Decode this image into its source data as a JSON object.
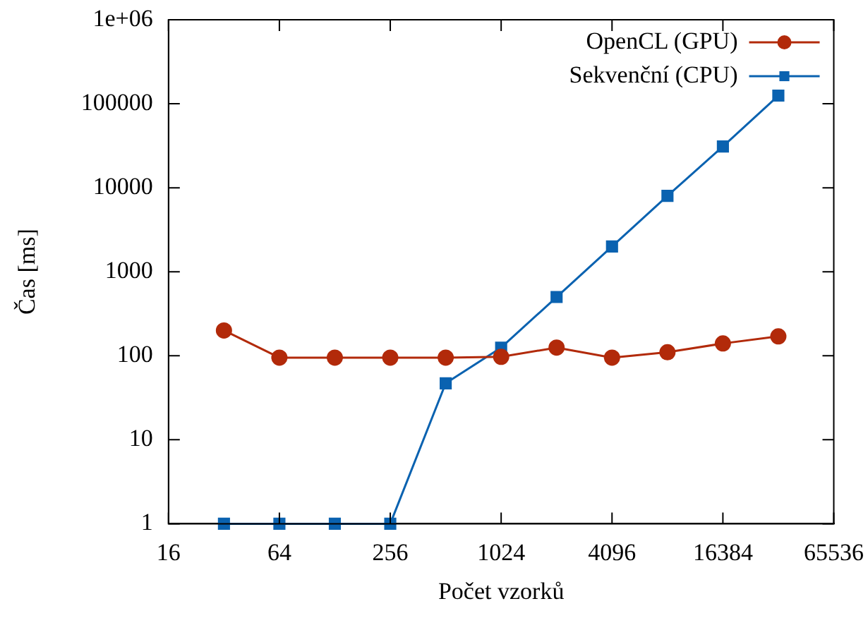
{
  "chart_data": {
    "type": "line",
    "xlabel": "Počet vzorků",
    "ylabel": "Čas [ms]",
    "x": [
      32,
      64,
      128,
      256,
      512,
      1024,
      2048,
      4096,
      8192,
      16384,
      32768
    ],
    "series": [
      {
        "name": "OpenCL (GPU)",
        "color": "#b22a0a",
        "marker": "circle",
        "values": [
          200,
          95,
          95,
          95,
          95,
          97,
          125,
          95,
          110,
          140,
          170
        ]
      },
      {
        "name": "Sekvenční (CPU)",
        "color": "#0a62b0",
        "marker": "square",
        "values": [
          1,
          1,
          1,
          1,
          47,
          125,
          500,
          2000,
          8000,
          31000,
          125000
        ]
      }
    ],
    "log": "xy",
    "xlim": [
      16,
      65536
    ],
    "xticks": [
      16,
      64,
      256,
      1024,
      4096,
      16384,
      65536
    ],
    "ylim": [
      1,
      1000000
    ],
    "yticks": [
      1,
      10,
      100,
      1000,
      10000,
      100000,
      {
        "value": 1000000,
        "label": "1e+06"
      }
    ],
    "legend": "top right",
    "line_style": "solid"
  }
}
